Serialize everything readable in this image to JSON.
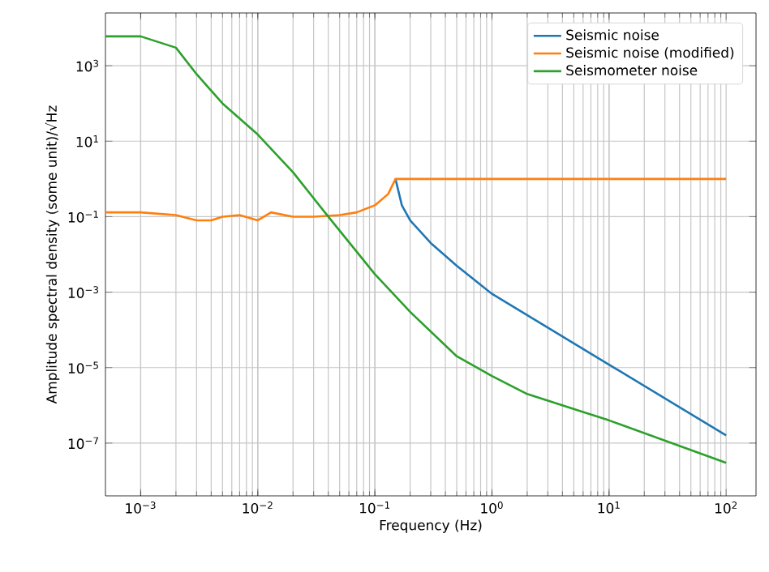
{
  "chart_data": {
    "type": "line",
    "xlabel": "Frequency (Hz)",
    "ylabel": "Amplitude spectral density (some unit)/√Hz",
    "log": "xy",
    "xlim": [
      0.0005,
      180
    ],
    "ylim": [
      4e-09,
      25000
    ],
    "xticks": [
      {
        "value": 0.001,
        "label": "10$^{−3}$"
      },
      {
        "value": 0.01,
        "label": "10$^{−2}$"
      },
      {
        "value": 0.1,
        "label": "10$^{−1}$"
      },
      {
        "value": 1,
        "label": "10$^{0}$"
      },
      {
        "value": 10,
        "label": "10$^{1}$"
      },
      {
        "value": 100,
        "label": "10$^{2}$"
      }
    ],
    "yticks": [
      {
        "value": 1e-07,
        "label": "10$^{−7}$"
      },
      {
        "value": 1e-05,
        "label": "10$^{−5}$"
      },
      {
        "value": 0.001,
        "label": "10$^{−3}$"
      },
      {
        "value": 0.1,
        "label": "10$^{−1}$"
      },
      {
        "value": 10,
        "label": "10$^{1}$"
      },
      {
        "value": 1000,
        "label": "10$^{3}$"
      }
    ],
    "grid": true,
    "legend": "top right",
    "series": [
      {
        "name": "Seismic noise",
        "color": "#1f77b4",
        "x": [
          0.15,
          0.17,
          0.2,
          0.3,
          0.5,
          1,
          10,
          100
        ],
        "values": [
          1,
          0.2,
          0.08,
          0.02,
          0.005,
          0.0009,
          1.2e-05,
          1.6e-07
        ]
      },
      {
        "name": "Seismic noise (modified)",
        "color": "#ff7f0e",
        "x": [
          0.0005,
          0.001,
          0.002,
          0.003,
          0.004,
          0.005,
          0.007,
          0.01,
          0.013,
          0.02,
          0.03,
          0.05,
          0.07,
          0.1,
          0.13,
          0.15,
          100
        ],
        "values": [
          0.13,
          0.13,
          0.11,
          0.08,
          0.08,
          0.1,
          0.11,
          0.08,
          0.13,
          0.1,
          0.1,
          0.11,
          0.13,
          0.2,
          0.4,
          1,
          1
        ]
      },
      {
        "name": "Seismometer noise",
        "color": "#2ca02c",
        "x": [
          0.0005,
          0.001,
          0.002,
          0.003,
          0.005,
          0.01,
          0.02,
          0.04,
          0.1,
          0.2,
          0.5,
          1,
          2,
          10,
          100
        ],
        "values": [
          6000,
          6000,
          3000,
          600,
          100,
          15,
          1.5,
          0.1,
          0.003,
          0.0003,
          2e-05,
          6e-06,
          2e-06,
          4e-07,
          3e-08
        ]
      }
    ]
  }
}
